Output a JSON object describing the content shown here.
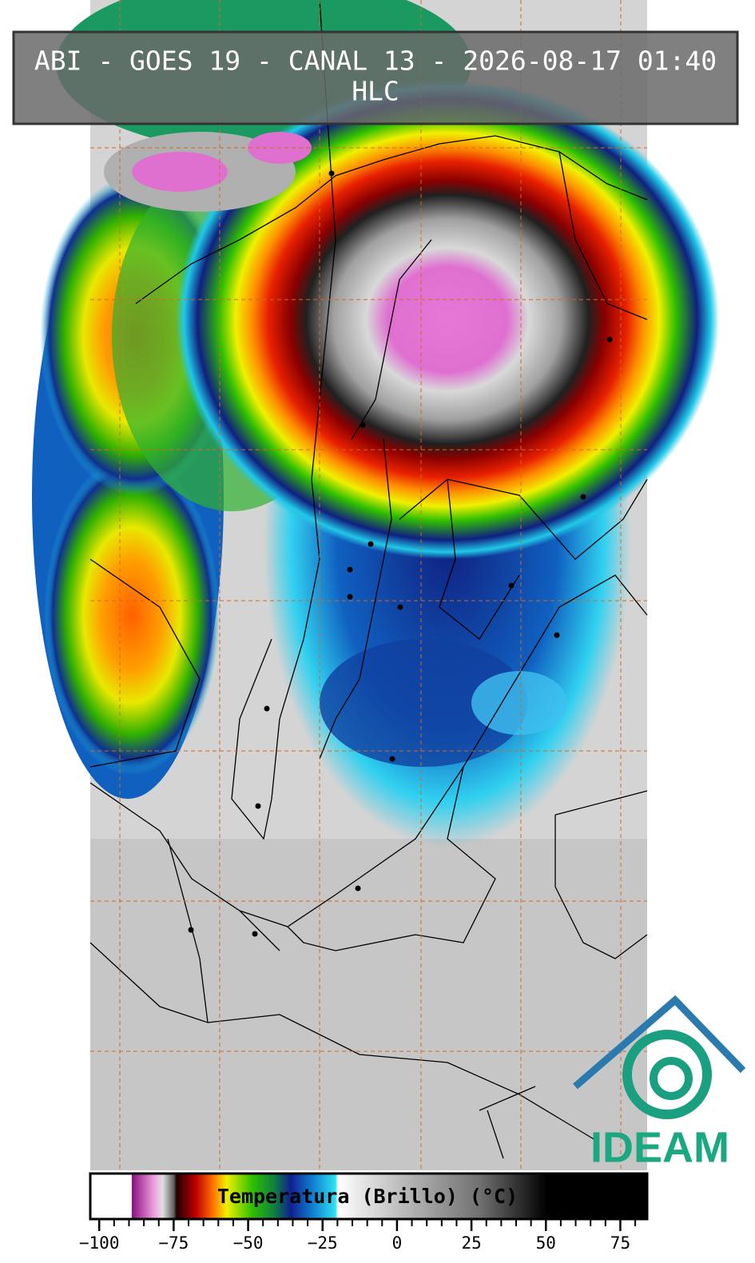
{
  "header": {
    "title": "ABI - GOES 19 - CANAL 13 - 2026-08-17 01:40",
    "subtitle": "HLC"
  },
  "colorbar": {
    "label": "Temperatura (Brillo) (°C)",
    "lim": [
      -103,
      84
    ],
    "ticks": [
      {
        "value": -100,
        "label": "−100"
      },
      {
        "value": -75,
        "label": "−75"
      },
      {
        "value": -50,
        "label": "−50"
      },
      {
        "value": -25,
        "label": "−25"
      },
      0,
      25,
      50,
      75
    ],
    "minor_ticks": [
      -100,
      -95,
      -90,
      -85,
      -80,
      -75,
      -70,
      -65,
      -60,
      -55,
      -50,
      -45,
      -40,
      -35,
      -30,
      -25,
      -20,
      -15,
      -10,
      -5,
      0,
      5,
      10,
      15,
      20,
      25,
      30,
      35,
      40,
      45,
      50,
      55,
      60,
      65,
      70,
      75,
      80
    ]
  },
  "logo": {
    "text": "IDEAM"
  }
}
